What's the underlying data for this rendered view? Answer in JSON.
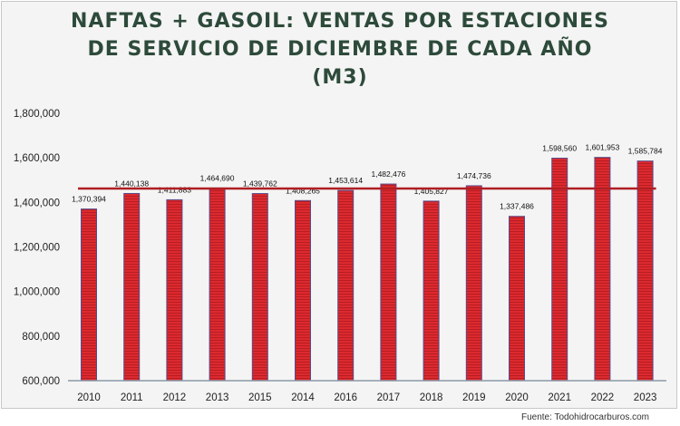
{
  "chart_data": {
    "type": "bar",
    "title": "NAFTAS + GASOIL: VENTAS POR ESTACIONES DE SERVICIO DE DICIEMBRE DE CADA AÑO (M3)",
    "title_lines": [
      "NAFTAS + GASOIL: VENTAS POR ESTACIONES",
      "DE SERVICIO DE DICIEMBRE DE CADA AÑO",
      "(M3)"
    ],
    "categories": [
      "2010",
      "2011",
      "2012",
      "2013",
      "2015",
      "2014",
      "2016",
      "2017",
      "2018",
      "2019",
      "2020",
      "2021",
      "2022",
      "2023"
    ],
    "values": [
      1370394,
      1440138,
      1411883,
      1464690,
      1439762,
      1408265,
      1453614,
      1482476,
      1405827,
      1474736,
      1337486,
      1598560,
      1601953,
      1585784
    ],
    "data_labels": [
      "1,370,394",
      "1,440,138",
      "1,411,883",
      "1,464,690",
      "1,439,762",
      "1,408,265",
      "1,453,614",
      "1,482,476",
      "1,405,827",
      "1,474,736",
      "1,337,486",
      "1,598,560",
      "1,601,953",
      "1,585,784"
    ],
    "reference_line": {
      "value": 1462541
    },
    "ylim": [
      600000,
      1800000
    ],
    "yticks": [
      "600,000",
      "800,000",
      "1,000,000",
      "1,200,000",
      "1,400,000",
      "1,600,000",
      "1,800,000"
    ],
    "ytick_values": [
      600000,
      800000,
      1000000,
      1200000,
      1400000,
      1600000,
      1800000
    ],
    "grid": false,
    "legend": "none",
    "xlabel": "",
    "ylabel": "",
    "colors": {
      "bar": "#d8262c",
      "bar_border": "#5a4a8a",
      "reference_line": "#b01e23",
      "title": "#2d4a3a"
    }
  },
  "source": "Fuente: Todohidrocarburos.com"
}
